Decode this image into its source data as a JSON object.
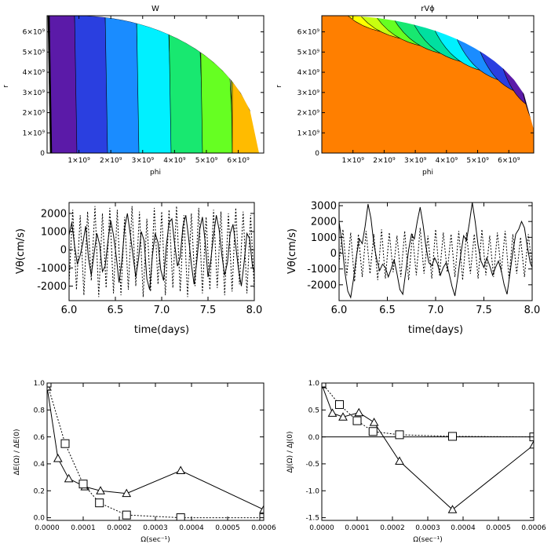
{
  "chart_data": [
    {
      "type": "contour",
      "title": "W",
      "xlabel": "phi",
      "ylabel": "r",
      "xticks": [
        "1×10⁹",
        "2×10⁹",
        "3×10⁹",
        "4×10⁹",
        "5×10⁹",
        "6×10⁹"
      ],
      "yticks": [
        "0",
        "1×10⁹",
        "2×10⁹",
        "3×10⁹",
        "4×10⁹",
        "5×10⁹",
        "6×10⁹"
      ],
      "xlim": [
        0,
        6800000000.0
      ],
      "ylim": [
        0,
        6800000000.0
      ],
      "levels": 9,
      "pattern": "vertical bands",
      "colors": [
        "#000000",
        "#5b1aa8",
        "#2a3fe0",
        "#1a8cff",
        "#00f0ff",
        "#18e870",
        "#66ff22",
        "#c8ff10",
        "#ffbb00"
      ]
    },
    {
      "type": "contour",
      "title": "rVϕ",
      "xlabel": "phi",
      "ylabel": "r",
      "xticks": [
        "1×10⁹",
        "2×10⁹",
        "3×10⁹",
        "4×10⁹",
        "5×10⁹",
        "6×10⁹"
      ],
      "yticks": [
        "0",
        "1×10⁹",
        "2×10⁹",
        "3×10⁹",
        "4×10⁹",
        "5×10⁹",
        "6×10⁹"
      ],
      "xlim": [
        0,
        6800000000.0
      ],
      "ylim": [
        0,
        6800000000.0
      ],
      "levels": 11,
      "pattern": "hyperbolic bands",
      "colors": [
        "#ff7f00",
        "#ffff00",
        "#c8ff10",
        "#66ff22",
        "#18e870",
        "#00e0a0",
        "#00f0ff",
        "#1a8cff",
        "#2a3fe0",
        "#5b1aa8",
        "#200040"
      ]
    },
    {
      "type": "line",
      "xlabel": "time(days)",
      "ylabel": "Vθ(cm/s)",
      "xlim": [
        6.0,
        8.0
      ],
      "ylim": [
        -2800,
        2600
      ],
      "xticks": [
        6.0,
        6.5,
        7.0,
        7.5,
        8.0
      ],
      "yticks": [
        -2000,
        -1000,
        0,
        1000,
        2000
      ],
      "series": [
        {
          "style": "solid",
          "x": [
            6.0,
            6.03,
            6.06,
            6.09,
            6.12,
            6.15,
            6.18,
            6.21,
            6.24,
            6.27,
            6.3,
            6.33,
            6.36,
            6.39,
            6.42,
            6.45,
            6.48,
            6.51,
            6.54,
            6.57,
            6.6,
            6.63,
            6.66,
            6.69,
            6.72,
            6.75,
            6.78,
            6.81,
            6.84,
            6.87,
            6.9,
            6.93,
            6.96,
            6.99,
            7.02,
            7.05,
            7.08,
            7.11,
            7.14,
            7.17,
            7.2,
            7.23,
            7.26,
            7.29,
            7.32,
            7.35,
            7.38,
            7.41,
            7.44,
            7.47,
            7.5,
            7.53,
            7.56,
            7.59,
            7.62,
            7.65,
            7.68,
            7.71,
            7.74,
            7.77,
            7.8,
            7.83,
            7.86,
            7.89,
            7.92,
            7.95,
            7.98,
            8.0
          ],
          "y": [
            800,
            1500,
            200,
            -800,
            -300,
            400,
            1300,
            -500,
            -1400,
            -200,
            900,
            300,
            -1200,
            -900,
            500,
            1600,
            800,
            -400,
            -1800,
            -600,
            1200,
            2000,
            900,
            -300,
            -1500,
            -500,
            1000,
            500,
            -1600,
            -2200,
            -300,
            900,
            400,
            -1100,
            -1700,
            200,
            1500,
            1700,
            300,
            -900,
            -400,
            1300,
            1900,
            700,
            -800,
            -1900,
            -600,
            1100,
            1800,
            400,
            -1500,
            -600,
            800,
            1900,
            1100,
            -300,
            -1400,
            -700,
            900,
            1400,
            200,
            -1100,
            -2000,
            -700,
            900,
            600,
            -900,
            -1200
          ]
        },
        {
          "style": "dotted",
          "x": [
            6.0,
            6.04,
            6.08,
            6.12,
            6.16,
            6.2,
            6.24,
            6.28,
            6.32,
            6.36,
            6.4,
            6.44,
            6.48,
            6.52,
            6.56,
            6.6,
            6.64,
            6.68,
            6.72,
            6.76,
            6.8,
            6.84,
            6.88,
            6.92,
            6.96,
            7.0,
            7.04,
            7.08,
            7.12,
            7.16,
            7.2,
            7.24,
            7.28,
            7.32,
            7.36,
            7.4,
            7.44,
            7.48,
            7.52,
            7.56,
            7.6,
            7.64,
            7.68,
            7.72,
            7.76,
            7.8,
            7.84,
            7.88,
            7.92,
            7.96,
            8.0
          ],
          "y": [
            -1800,
            2200,
            -2200,
            1900,
            -2500,
            2100,
            -1700,
            2400,
            -2600,
            2000,
            -2100,
            2300,
            -2400,
            2200,
            -2500,
            1800,
            -2200,
            2400,
            -2000,
            2100,
            -2600,
            1700,
            -2300,
            2300,
            -1900,
            2100,
            -2500,
            2200,
            -2100,
            2400,
            -2300,
            1900,
            -2600,
            2000,
            -2000,
            2300,
            -2400,
            1800,
            -2200,
            2200,
            -2100,
            2100,
            -2500,
            2000,
            -2300,
            2300,
            -1900,
            2100,
            -2400,
            1900,
            -2200
          ]
        }
      ]
    },
    {
      "type": "line",
      "xlabel": "time(days)",
      "ylabel": "Vθ(cm/s)",
      "xlim": [
        6.0,
        8.0
      ],
      "ylim": [
        -3000,
        3200
      ],
      "xticks": [
        6.0,
        6.5,
        7.0,
        7.5,
        8.0
      ],
      "yticks": [
        -2000,
        -1000,
        0,
        1000,
        2000,
        3000
      ],
      "series": [
        {
          "style": "solid",
          "x": [
            6.0,
            6.03,
            6.06,
            6.09,
            6.12,
            6.15,
            6.18,
            6.21,
            6.24,
            6.27,
            6.3,
            6.33,
            6.36,
            6.39,
            6.42,
            6.45,
            6.48,
            6.51,
            6.54,
            6.57,
            6.6,
            6.63,
            6.66,
            6.69,
            6.72,
            6.75,
            6.78,
            6.81,
            6.84,
            6.87,
            6.9,
            6.93,
            6.96,
            6.99,
            7.02,
            7.05,
            7.08,
            7.11,
            7.14,
            7.17,
            7.2,
            7.23,
            7.26,
            7.29,
            7.32,
            7.35,
            7.38,
            7.41,
            7.44,
            7.47,
            7.5,
            7.53,
            7.56,
            7.59,
            7.62,
            7.65,
            7.68,
            7.71,
            7.74,
            7.77,
            7.8,
            7.83,
            7.86,
            7.89,
            7.92,
            7.95,
            7.98,
            8.0
          ],
          "y": [
            2000,
            600,
            -1200,
            -2400,
            -2800,
            -1600,
            -200,
            900,
            600,
            1700,
            3100,
            2200,
            600,
            -400,
            -1100,
            -700,
            -900,
            -1500,
            -1000,
            -400,
            -1300,
            -2300,
            -2600,
            -1200,
            200,
            1200,
            900,
            2000,
            2900,
            1800,
            400,
            -600,
            -800,
            -300,
            -700,
            -1400,
            -900,
            -600,
            -1300,
            -2100,
            -2700,
            -1500,
            -100,
            1100,
            800,
            1900,
            3200,
            2000,
            500,
            -500,
            -900,
            -300,
            -800,
            -1400,
            -900,
            -500,
            -1100,
            -2000,
            -2600,
            -1300,
            100,
            1200,
            1500,
            2000,
            1600,
            400,
            -600,
            -900
          ]
        },
        {
          "style": "dotted",
          "x": [
            6.0,
            6.04,
            6.08,
            6.12,
            6.16,
            6.2,
            6.24,
            6.28,
            6.32,
            6.36,
            6.4,
            6.44,
            6.48,
            6.52,
            6.56,
            6.6,
            6.64,
            6.68,
            6.72,
            6.76,
            6.8,
            6.84,
            6.88,
            6.92,
            6.96,
            7.0,
            7.04,
            7.08,
            7.12,
            7.16,
            7.2,
            7.24,
            7.28,
            7.32,
            7.36,
            7.4,
            7.44,
            7.48,
            7.52,
            7.56,
            7.6,
            7.64,
            7.68,
            7.72,
            7.76,
            7.8,
            7.84,
            7.88,
            7.92,
            7.96,
            8.0
          ],
          "y": [
            -600,
            1500,
            -1400,
            1300,
            -1800,
            1200,
            -1500,
            1400,
            -1300,
            1200,
            -1700,
            1500,
            -1600,
            1300,
            -1200,
            1100,
            -1500,
            1400,
            -1700,
            1200,
            -1400,
            1600,
            -1300,
            1100,
            -1600,
            1500,
            -1400,
            1300,
            -1200,
            1200,
            -1500,
            1400,
            -1700,
            1300,
            -1300,
            1200,
            -1600,
            1500,
            -1400,
            1100,
            -1500,
            1300,
            -1200,
            1400,
            -1600,
            1200,
            -1300,
            1000,
            -1500,
            1200,
            -900
          ]
        }
      ]
    },
    {
      "type": "line",
      "xlabel": "Ω(sec⁻¹)",
      "ylabel": "ΔE(Ω) / ΔE(0)",
      "xlim": [
        0,
        0.0006
      ],
      "ylim": [
        -0.02,
        1.0
      ],
      "xticks": [
        "0.0000",
        "0.0001",
        "0.0002",
        "0.0003",
        "0.0004",
        "0.0005",
        "0.0006"
      ],
      "yticks": [
        "0.0",
        "0.2",
        "0.4",
        "0.6",
        "0.8",
        "1.0"
      ],
      "series": [
        {
          "style": "solid",
          "marker": "triangle",
          "x": [
            0.0,
            3e-05,
            6e-05,
            0.000105,
            0.000148,
            0.00022,
            0.00037,
            0.0006
          ],
          "y": [
            0.97,
            0.44,
            0.29,
            0.23,
            0.2,
            0.18,
            0.35,
            0.06
          ]
        },
        {
          "style": "dotted",
          "marker": "square",
          "x": [
            0.0,
            5e-05,
            0.0001,
            0.000145,
            0.00022,
            0.00037,
            0.0006
          ],
          "y": [
            1.0,
            0.55,
            0.25,
            0.11,
            0.02,
            0.0,
            0.0
          ]
        }
      ]
    },
    {
      "type": "line",
      "xlabel": "Ω(sec⁻¹)",
      "ylabel": "ΔJ(Ω) / ΔJ(0)",
      "xlim": [
        0,
        0.0006
      ],
      "ylim": [
        -1.55,
        1.0
      ],
      "xticks": [
        "0.0000",
        "0.0001",
        "0.0002",
        "0.0003",
        "0.0004",
        "0.0005",
        "0.0006"
      ],
      "yticks": [
        "-1.5",
        "-1.0",
        "-0.5",
        "0.0",
        "0.5",
        "1.0"
      ],
      "series": [
        {
          "style": "solid",
          "marker": "triangle",
          "x": [
            0.0,
            3e-05,
            6e-05,
            0.000105,
            0.000148,
            0.00022,
            0.00037,
            0.0006
          ],
          "y": [
            0.97,
            0.44,
            0.37,
            0.45,
            0.27,
            -0.45,
            -1.35,
            -0.15
          ]
        },
        {
          "style": "dotted",
          "marker": "square",
          "x": [
            0.0,
            5e-05,
            0.0001,
            0.000145,
            0.00022,
            0.00037,
            0.0006
          ],
          "y": [
            1.0,
            0.6,
            0.3,
            0.1,
            0.04,
            0.01,
            0.0
          ]
        }
      ]
    }
  ]
}
